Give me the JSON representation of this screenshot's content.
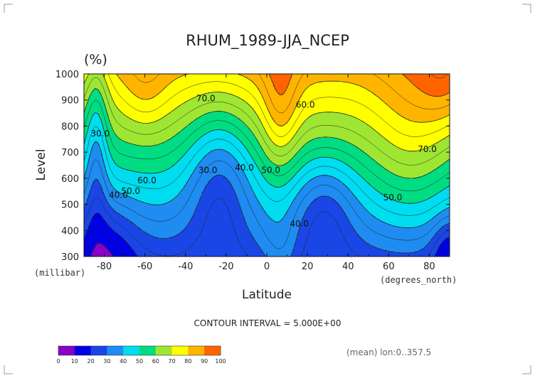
{
  "chart_data": {
    "type": "heatmap",
    "title": "RHUM_1989-JJA_NCEP",
    "unit_label": "(%)",
    "xlabel": "Latitude",
    "ylabel": "Level",
    "x_unit": "(degrees_north)",
    "y_unit": "(millibar)",
    "xlim": [
      -90,
      90
    ],
    "ylim": [
      1000,
      300
    ],
    "x_ticks": [
      "-80",
      "-60",
      "-40",
      "-20",
      "0",
      "20",
      "40",
      "60",
      "80"
    ],
    "y_ticks": [
      "300",
      "400",
      "500",
      "600",
      "700",
      "800",
      "900",
      "1000"
    ],
    "contour_interval_text": "CONTOUR INTERVAL = 5.000E+00",
    "footnote": "(mean) lon:0..357.5",
    "color_levels": [
      0,
      10,
      20,
      30,
      40,
      50,
      60,
      70,
      80,
      90,
      100
    ],
    "colorbar_labels": [
      "0",
      "10",
      "20",
      "30",
      "40",
      "50",
      "60",
      "70",
      "80",
      "90",
      "100"
    ],
    "colors": [
      "#8a00c8",
      "#0000e6",
      "#1a46e6",
      "#1e8cf0",
      "#00dcf0",
      "#00dc82",
      "#9ee632",
      "#ffff00",
      "#ffb400",
      "#ff6400",
      "#ff0000"
    ],
    "contour_labels": [
      {
        "text": "30.0",
        "x": -82,
        "y": 760
      },
      {
        "text": "40.0",
        "x": -73,
        "y": 525
      },
      {
        "text": "50.0",
        "x": -67,
        "y": 540
      },
      {
        "text": "60.0",
        "x": -59,
        "y": 580
      },
      {
        "text": "70.0",
        "x": -30,
        "y": 895
      },
      {
        "text": "30.0",
        "x": -29,
        "y": 620
      },
      {
        "text": "40.0",
        "x": -11,
        "y": 630
      },
      {
        "text": "50.0",
        "x": 2,
        "y": 620
      },
      {
        "text": "40.0",
        "x": 16,
        "y": 415
      },
      {
        "text": "60.0",
        "x": 19,
        "y": 870
      },
      {
        "text": "50.0",
        "x": 62,
        "y": 515
      },
      {
        "text": "70.0",
        "x": 79,
        "y": 700
      }
    ]
  }
}
